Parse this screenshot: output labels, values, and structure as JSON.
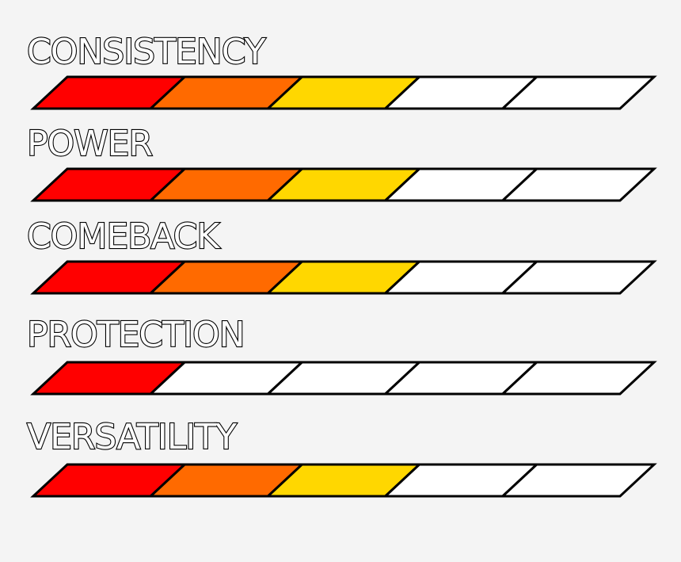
{
  "palette": {
    "level_colors": [
      "#ff0000",
      "#ff6a00",
      "#ffd700"
    ],
    "empty_color": "#ffffff",
    "outline_color": "#000000",
    "background": "#f4f4f4"
  },
  "segments_per_bar": 5,
  "stats": [
    {
      "label": "CONSISTENCY",
      "level": 3
    },
    {
      "label": "POWER",
      "level": 3
    },
    {
      "label": "COMEBACK",
      "level": 3
    },
    {
      "label": "PROTECTION",
      "level": 1
    },
    {
      "label": "VERSATILITY",
      "level": 3
    }
  ]
}
